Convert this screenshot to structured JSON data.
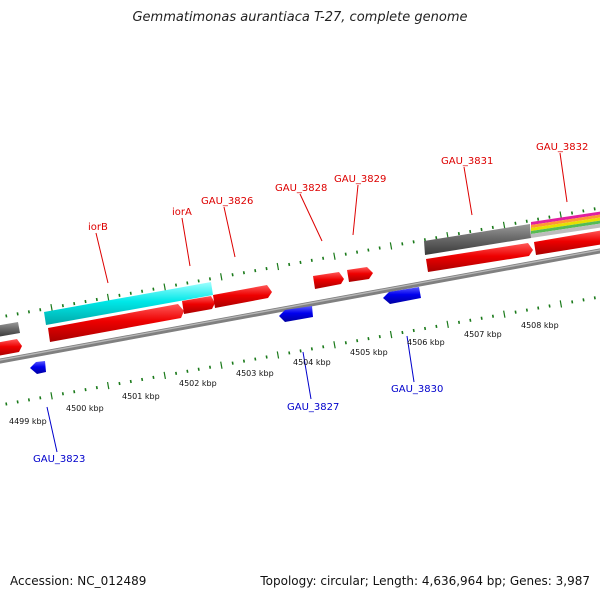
{
  "title": "Gemmatimonas aurantiaca T-27, complete genome",
  "accession": "Accession: NC_012489",
  "summary": "Topology: circular; Length: 4,636,964 bp; Genes: 3,987",
  "colors": {
    "forward_label": "#dd0000",
    "reverse_label": "#0000cc",
    "tick": "#1a7a1a",
    "backbone": "#888888"
  },
  "kbp_labels": [
    "4499 kbp",
    "4500 kbp",
    "4501 kbp",
    "4502 kbp",
    "4503 kbp",
    "4504 kbp",
    "4505 kbp",
    "4506 kbp",
    "4507 kbp",
    "4508 kbp"
  ],
  "forward_gene_labels": [
    "iorB",
    "iorA",
    "GAU_3826",
    "GAU_3828",
    "GAU_3829",
    "GAU_3831",
    "GAU_3832"
  ],
  "reverse_gene_labels": [
    "GAU_3823",
    "GAU_3827",
    "GAU_3830"
  ]
}
